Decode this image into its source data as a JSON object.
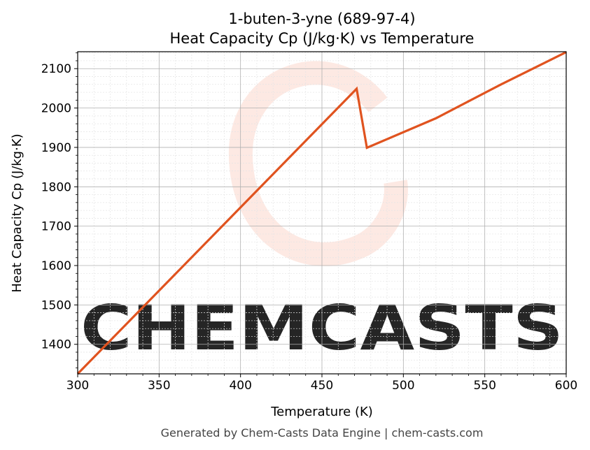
{
  "chart_data": {
    "type": "line",
    "title": [
      "1-buten-3-yne (689-97-4)",
      "Heat Capacity Cp (J/kg·K) vs Temperature"
    ],
    "xlabel": "Temperature (K)",
    "ylabel": "Heat Capacity Cp (J/kg·K)",
    "xlim": [
      300,
      600
    ],
    "ylim": [
      1325,
      2143
    ],
    "xticks": [
      300,
      350,
      400,
      450,
      500,
      550,
      600
    ],
    "yticks": [
      1400,
      1500,
      1600,
      1700,
      1800,
      1900,
      2000,
      2100
    ],
    "grid": true,
    "series": [
      {
        "name": "Cp",
        "color": "#e0531f",
        "x": [
          300,
          471.3,
          477.6,
          520,
          560,
          600
        ],
        "y": [
          1325,
          2049,
          1899,
          1974,
          2060,
          2142
        ]
      }
    ],
    "watermark": "CHEMCASTS",
    "footer": "Generated by Chem-Casts Data Engine | chem-casts.com"
  }
}
